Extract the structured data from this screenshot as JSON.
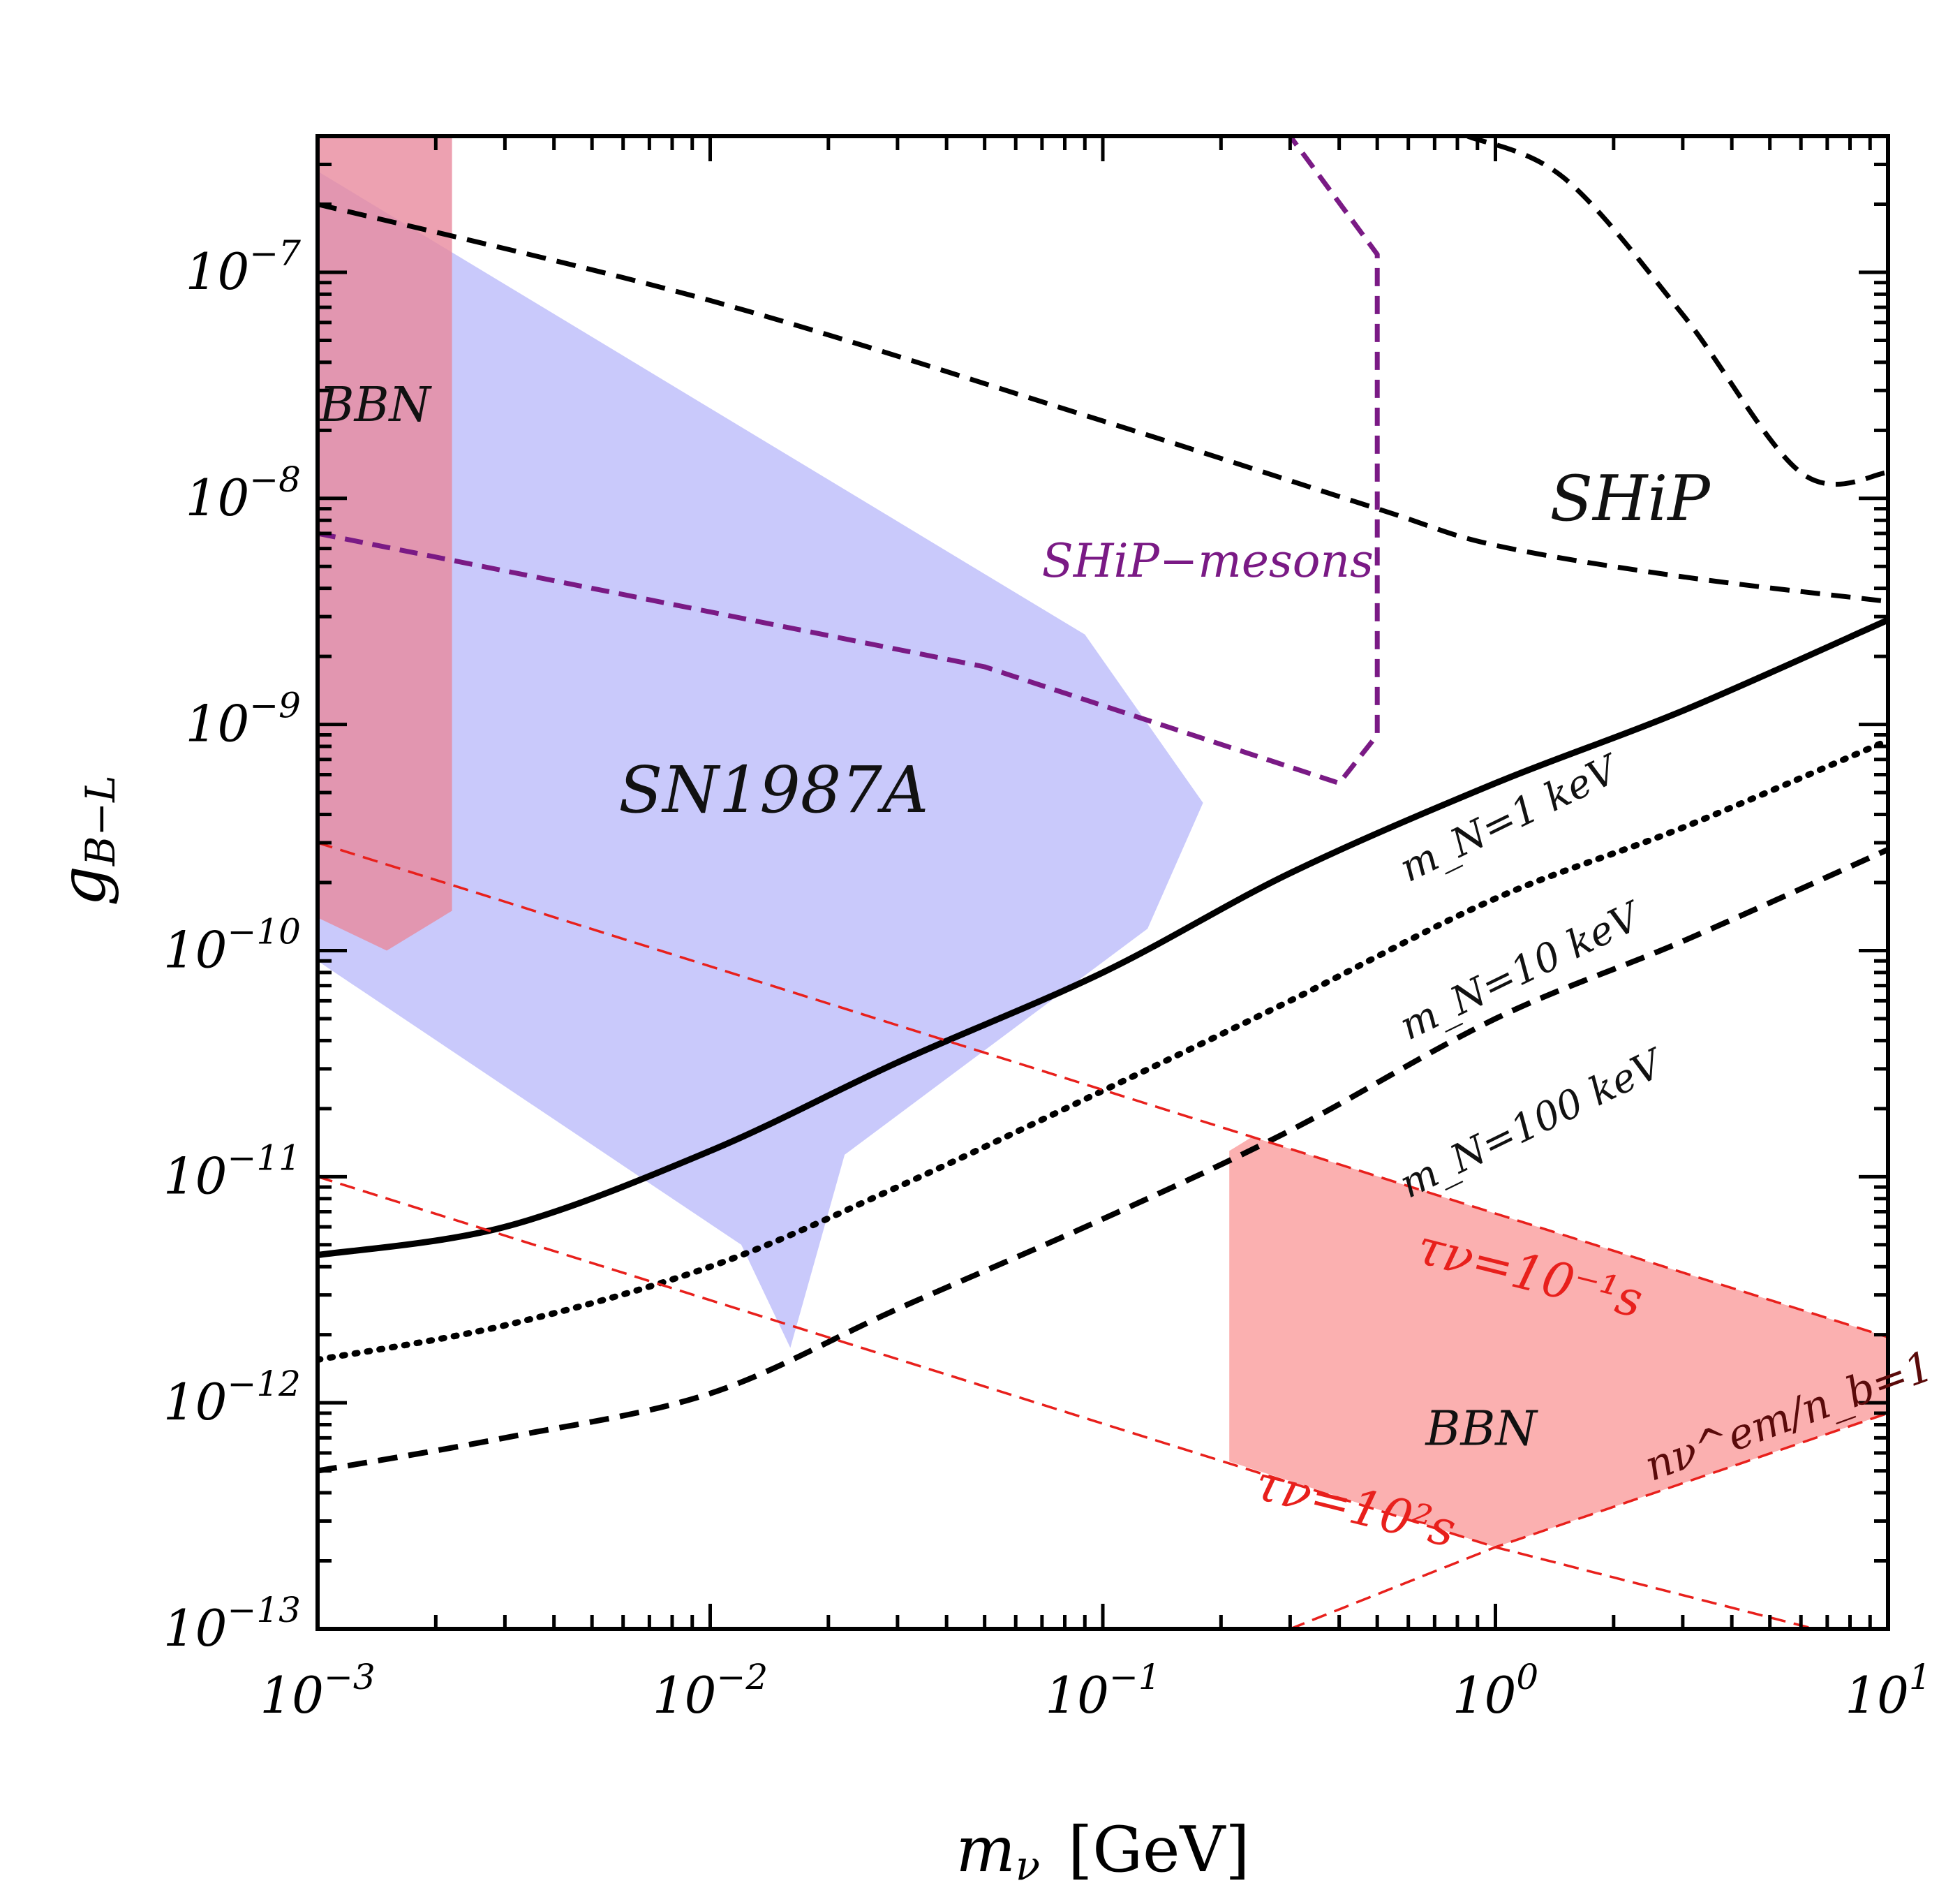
{
  "chart_data": {
    "type": "line",
    "title": "",
    "xlabel": "m_ν [GeV]",
    "xlabel_parts": {
      "main": "m",
      "sub": "ν",
      "unit": "[GeV]"
    },
    "ylabel": "g_B−L",
    "ylabel_parts": {
      "main": "g",
      "sub": "B−L"
    },
    "xscale": "log",
    "yscale": "log",
    "xlim": [
      0.001,
      10
    ],
    "ylim": [
      1e-13,
      4e-07
    ],
    "grid": false,
    "x_ticks": [
      {
        "value": 0.001,
        "base": "10",
        "exp": "−3"
      },
      {
        "value": 0.01,
        "base": "10",
        "exp": "−2"
      },
      {
        "value": 0.1,
        "base": "10",
        "exp": "−1"
      },
      {
        "value": 1,
        "base": "10",
        "exp": "0"
      },
      {
        "value": 10,
        "base": "10",
        "exp": "1"
      }
    ],
    "y_ticks": [
      {
        "value": 1e-13,
        "base": "10",
        "exp": "−13"
      },
      {
        "value": 1e-12,
        "base": "10",
        "exp": "−12"
      },
      {
        "value": 1e-11,
        "base": "10",
        "exp": "−11"
      },
      {
        "value": 1e-10,
        "base": "10",
        "exp": "−10"
      },
      {
        "value": 1e-09,
        "base": "10",
        "exp": "−9"
      },
      {
        "value": 1e-08,
        "base": "10",
        "exp": "−8"
      },
      {
        "value": 1e-07,
        "base": "10",
        "exp": "−7"
      }
    ],
    "regions": [
      {
        "name": "SN1987A",
        "color": "#c9c9fb",
        "opacity": 1,
        "points": [
          [
            0.001,
            2.8e-07
          ],
          [
            0.09,
            2.5e-09
          ],
          [
            0.18,
            4.5e-10
          ],
          [
            0.13,
            1.25e-10
          ],
          [
            0.022,
            1.25e-11
          ],
          [
            0.016,
            1.75e-12
          ],
          [
            0.012,
            5e-12
          ],
          [
            0.001,
            9e-11
          ]
        ]
      },
      {
        "name": "BBN-low-mass",
        "color": "#e88a9e",
        "opacity": 0.8,
        "points": [
          [
            0.001,
            4e-07
          ],
          [
            0.0022,
            4e-07
          ],
          [
            0.0022,
            1.5e-10
          ],
          [
            0.0015,
            1e-10
          ],
          [
            0.001,
            1.4e-10
          ]
        ]
      },
      {
        "name": "BBN-high-mass",
        "color": "#fbb0b0",
        "opacity": 1,
        "points": [
          [
            0.21,
            1.3e-11
          ],
          [
            0.24,
            1.5e-11
          ],
          [
            10,
            1.95e-12
          ],
          [
            10,
            9e-13
          ],
          [
            1,
            2.3e-13
          ],
          [
            0.21,
            5.5e-13
          ]
        ]
      }
    ],
    "series": [
      {
        "name": "SHiP-upper",
        "color": "#000000",
        "dash": "28,16",
        "width": 7,
        "x": [
          0.85,
          1.5,
          3,
          6,
          10
        ],
        "y": [
          4e-07,
          2.6e-07,
          6.5e-08,
          1.3e-08,
          1.3e-08
        ]
      },
      {
        "name": "SHiP",
        "color": "#000000",
        "dash": "28,16",
        "width": 7,
        "x": [
          0.001,
          0.01,
          0.1,
          0.5,
          1,
          3,
          10
        ],
        "y": [
          2e-07,
          7.5e-08,
          2.2e-08,
          9e-09,
          6.2e-09,
          4.5e-09,
          3.5e-09
        ]
      },
      {
        "name": "SHiP-mesons",
        "color": "#7a1a85",
        "dash": "26,14",
        "width": 7,
        "x": [
          0.001,
          0.05,
          0.4,
          0.5,
          0.5,
          0.5,
          0.3
        ],
        "y": [
          7e-09,
          1.8e-09,
          5.5e-10,
          9e-10,
          1.2e-07,
          1.2e-07,
          4e-07
        ]
      },
      {
        "name": "m_N=1 keV",
        "color": "#000000",
        "dash": "",
        "width": 9,
        "x": [
          0.001,
          0.003,
          0.01,
          0.03,
          0.1,
          0.3,
          1,
          3,
          10
        ],
        "y": [
          4.5e-12,
          6e-12,
          1.3e-11,
          3.2e-11,
          8e-11,
          2.2e-10,
          5.5e-10,
          1.15e-09,
          2.9e-09
        ]
      },
      {
        "name": "m_N=10 keV",
        "color": "#000000",
        "dash": "4,14",
        "width": 9,
        "x": [
          0.001,
          0.003,
          0.01,
          0.03,
          0.1,
          0.3,
          1,
          3,
          10
        ],
        "y": [
          1.55e-12,
          2.2e-12,
          4e-12,
          9e-12,
          2.4e-11,
          6e-11,
          1.7e-10,
          3.5e-10,
          8.5e-10
        ]
      },
      {
        "name": "m_N=100 keV",
        "color": "#000000",
        "dash": "28,16",
        "width": 8,
        "x": [
          0.001,
          0.003,
          0.01,
          0.03,
          0.1,
          0.3,
          1,
          3,
          10
        ],
        "y": [
          5e-13,
          7e-13,
          1.1e-12,
          2.6e-12,
          6.5e-12,
          1.6e-11,
          5e-11,
          1.1e-10,
          2.8e-10
        ]
      },
      {
        "name": "tau=1e-1 s",
        "color": "#e8201c",
        "dash": "22,12",
        "width": 3.5,
        "x": [
          0.001,
          0.24,
          10
        ],
        "y": [
          3e-10,
          1.5e-11,
          1.95e-12
        ]
      },
      {
        "name": "tau=1e2 s",
        "color": "#e8201c",
        "dash": "22,12",
        "width": 3.5,
        "x": [
          0.001,
          1,
          6.5
        ],
        "y": [
          1e-11,
          2.3e-13,
          1e-13
        ]
      },
      {
        "name": "n_em/n_b=1",
        "color": "#e8201c",
        "dash": "22,12",
        "width": 3.5,
        "x": [
          0.3,
          1,
          10
        ],
        "y": [
          1e-13,
          2.3e-13,
          9e-13
        ]
      }
    ],
    "annotations": [
      {
        "id": "bbn-left",
        "text": "BBN",
        "x": 0.0014,
        "y": 2.2e-08,
        "color": "#111111",
        "size": 68,
        "rotate": 0,
        "anchor": "middle"
      },
      {
        "id": "sn1987a",
        "text": "SN1987A",
        "x": 0.0145,
        "y": 4.1e-10,
        "color": "#111111",
        "size": 92,
        "rotate": 0,
        "anchor": "middle"
      },
      {
        "id": "ship",
        "text": "SHiP",
        "x": 2.2,
        "y": 8e-09,
        "color": "#111111",
        "size": 90,
        "rotate": 0,
        "anchor": "middle"
      },
      {
        "id": "ship-mesons",
        "text": "SHiP−mesons",
        "x": 0.185,
        "y": 4.5e-09,
        "color": "#7a1a85",
        "size": 66,
        "rotate": 0,
        "anchor": "middle"
      },
      {
        "id": "mn1",
        "text": "m_N=1 keV",
        "x": 0.6,
        "y": 2e-10,
        "color": "#111111",
        "size": 56,
        "rotate": -26,
        "anchor": "start"
      },
      {
        "id": "mn10",
        "text": "m_N=10 keV",
        "x": 0.6,
        "y": 4e-11,
        "color": "#111111",
        "size": 56,
        "rotate": -26,
        "anchor": "start"
      },
      {
        "id": "mn100",
        "text": "m_N=100 keV",
        "x": 0.6,
        "y": 8e-12,
        "color": "#111111",
        "size": 56,
        "rotate": -26,
        "anchor": "start"
      },
      {
        "id": "tau-1",
        "text": "τν=10⁻¹s",
        "x": 0.62,
        "y": 4.2e-12,
        "color": "#e8201c",
        "size": 70,
        "rotate": 14,
        "anchor": "start"
      },
      {
        "id": "tau2",
        "text": "τν=10²s",
        "x": 0.24,
        "y": 3.8e-13,
        "color": "#e8201c",
        "size": 70,
        "rotate": 14,
        "anchor": "start"
      },
      {
        "id": "bbn-right",
        "text": "BBN",
        "x": 0.92,
        "y": 6.5e-13,
        "color": "#111111",
        "size": 68,
        "rotate": 0,
        "anchor": "middle"
      },
      {
        "id": "nratio",
        "text": "nν^em/n_b=1",
        "x": 2.5,
        "y": 4.5e-13,
        "color": "#5a0a0a",
        "size": 60,
        "rotate": -20,
        "anchor": "start"
      }
    ],
    "legend": null
  }
}
